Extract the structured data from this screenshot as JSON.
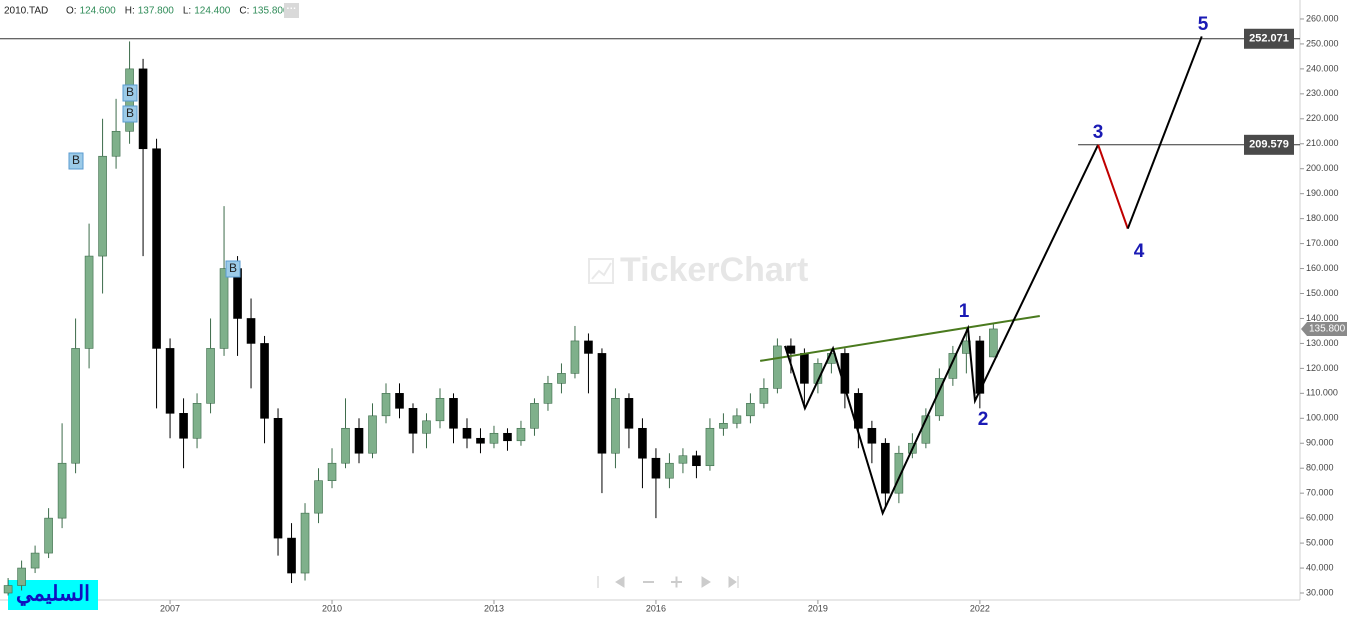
{
  "header": {
    "symbol": "2010.TAD",
    "ohlc": [
      {
        "label": "O:",
        "value": "124.600"
      },
      {
        "label": "H:",
        "value": "137.800"
      },
      {
        "label": "L:",
        "value": "124.400"
      },
      {
        "label": "C:",
        "value": "135.800"
      }
    ],
    "menu": "···"
  },
  "chart_data": {
    "type": "candlestick",
    "watermark": "TickerChart",
    "caption": "السليمي",
    "x": [
      2004.0,
      2004.25,
      2004.5,
      2004.75,
      2005.0,
      2005.25,
      2005.5,
      2005.75,
      2006.0,
      2006.25,
      2006.5,
      2006.75,
      2007.0,
      2007.25,
      2007.5,
      2007.75,
      2008.0,
      2008.25,
      2008.5,
      2008.75,
      2009.0,
      2009.25,
      2009.5,
      2009.75,
      2010.0,
      2010.25,
      2010.5,
      2010.75,
      2011.0,
      2011.25,
      2011.5,
      2011.75,
      2012.0,
      2012.25,
      2012.5,
      2012.75,
      2013.0,
      2013.25,
      2013.5,
      2013.75,
      2014.0,
      2014.25,
      2014.5,
      2014.75,
      2015.0,
      2015.25,
      2015.5,
      2015.75,
      2016.0,
      2016.25,
      2016.5,
      2016.75,
      2017.0,
      2017.25,
      2017.5,
      2017.75,
      2018.0,
      2018.25,
      2018.5,
      2018.75,
      2019.0,
      2019.25,
      2019.5,
      2019.75,
      2020.0,
      2020.25,
      2020.5,
      2020.75,
      2021.0,
      2021.25,
      2021.5,
      2021.75,
      2022.0,
      2022.25
    ],
    "open": [
      30,
      33,
      40,
      46,
      60,
      82,
      128,
      165,
      205,
      215,
      240,
      208,
      128,
      102,
      92,
      106,
      128,
      160,
      140,
      130,
      100,
      52,
      38,
      62,
      75,
      82,
      96,
      86,
      101,
      110,
      104,
      94,
      99,
      108,
      96,
      92,
      90,
      94,
      91,
      96,
      106,
      114,
      118,
      131,
      126,
      86,
      108,
      96,
      84,
      76,
      82,
      85,
      81,
      96,
      98,
      101,
      106,
      112,
      129,
      126,
      114,
      122,
      126,
      110,
      96,
      90,
      70,
      86,
      90,
      101,
      116,
      126,
      131,
      124.6
    ],
    "high": [
      36,
      43,
      49,
      64,
      98,
      140,
      178,
      220,
      228,
      251,
      244,
      212,
      132,
      108,
      110,
      140,
      185,
      165,
      148,
      133,
      104,
      58,
      66,
      80,
      88,
      108,
      100,
      106,
      114,
      114,
      106,
      102,
      112,
      110,
      100,
      96,
      97,
      96,
      99,
      108,
      117,
      122,
      137,
      134,
      128,
      112,
      110,
      100,
      88,
      86,
      88,
      87,
      100,
      102,
      104,
      110,
      116,
      132,
      132,
      128,
      124,
      128,
      128,
      112,
      99,
      92,
      89,
      94,
      104,
      120,
      129,
      136,
      133,
      137.8
    ],
    "low": [
      29,
      31,
      38,
      44,
      56,
      78,
      120,
      150,
      200,
      210,
      165,
      104,
      92,
      80,
      88,
      102,
      125,
      125,
      112,
      90,
      45,
      34,
      35,
      58,
      72,
      80,
      82,
      84,
      98,
      100,
      86,
      88,
      96,
      90,
      88,
      86,
      88,
      87,
      89,
      93,
      103,
      110,
      116,
      110,
      70,
      80,
      88,
      72,
      60,
      72,
      78,
      76,
      79,
      93,
      96,
      98,
      104,
      110,
      118,
      104,
      110,
      118,
      104,
      88,
      82,
      64,
      66,
      84,
      88,
      99,
      113,
      118,
      104,
      124.4
    ],
    "close": [
      33,
      40,
      46,
      60,
      82,
      128,
      165,
      205,
      215,
      240,
      208,
      128,
      102,
      92,
      106,
      128,
      160,
      140,
      130,
      100,
      52,
      38,
      62,
      75,
      82,
      96,
      86,
      101,
      110,
      104,
      94,
      99,
      108,
      96,
      92,
      90,
      94,
      91,
      96,
      106,
      114,
      118,
      131,
      126,
      86,
      108,
      96,
      84,
      76,
      82,
      85,
      81,
      96,
      98,
      101,
      106,
      112,
      129,
      126,
      114,
      122,
      126,
      110,
      96,
      90,
      70,
      86,
      90,
      101,
      116,
      126,
      131,
      110,
      135.8
    ],
    "up_color": "#7fb08b",
    "down_color": "#000000",
    "xlim": [
      2003.85,
      2027.93
    ],
    "ylim": [
      27.2,
      267.6
    ],
    "xticks": [
      2007,
      2010,
      2013,
      2016,
      2019,
      2022
    ],
    "yticks": [
      {
        "value": 30,
        "label": "30.000"
      },
      {
        "value": 40,
        "label": "40.000"
      },
      {
        "value": 50,
        "label": "50.000"
      },
      {
        "value": 60,
        "label": "60.000"
      },
      {
        "value": 70,
        "label": "70.000"
      },
      {
        "value": 80,
        "label": "80.000"
      },
      {
        "value": 90,
        "label": "90.000"
      },
      {
        "value": 100,
        "label": "100.000"
      },
      {
        "value": 110,
        "label": "110.000"
      },
      {
        "value": 120,
        "label": "120.000"
      },
      {
        "value": 130,
        "label": "130.000"
      },
      {
        "value": 140,
        "label": "140.000"
      },
      {
        "value": 150,
        "label": "150.000"
      },
      {
        "value": 160,
        "label": "160.000"
      },
      {
        "value": 170,
        "label": "170.000"
      },
      {
        "value": 180,
        "label": "180.000"
      },
      {
        "value": 190,
        "label": "190.000"
      },
      {
        "value": 200,
        "label": "200.000"
      },
      {
        "value": 210,
        "label": "210.000"
      },
      {
        "value": 220,
        "label": "220.000"
      },
      {
        "value": 230,
        "label": "230.000"
      },
      {
        "value": 240,
        "label": "240.000"
      },
      {
        "value": 250,
        "label": "250.000"
      },
      {
        "value": 260,
        "label": "260.000"
      }
    ],
    "last_price": {
      "value": 135.8,
      "label": "135.800"
    },
    "levels": [
      252.071,
      209.579
    ],
    "trendline": {
      "color": "#4a7a1e",
      "x": [
        2017.93,
        2023.11
      ],
      "y": [
        123,
        141
      ]
    },
    "waves": [
      {
        "color": "#000000",
        "x": [
          2018.39,
          2018.76,
          2019.28,
          2020.2,
          2021.78,
          2021.91,
          2024.19
        ],
        "y": [
          129,
          104,
          128,
          62,
          136,
          107,
          209.6
        ]
      },
      {
        "color": "#c00000",
        "x": [
          2024.19,
          2024.74
        ],
        "y": [
          209.6,
          176
        ]
      },
      {
        "color": "#000000",
        "x": [
          2024.74,
          2026.11
        ],
        "y": [
          176,
          253
        ]
      }
    ],
    "wave_labels": [
      "1",
      "2",
      "3",
      "4",
      "5"
    ],
    "wave_label_color": "#1a1ab4",
    "signals": [
      "B",
      "B",
      "B",
      "B"
    ]
  }
}
